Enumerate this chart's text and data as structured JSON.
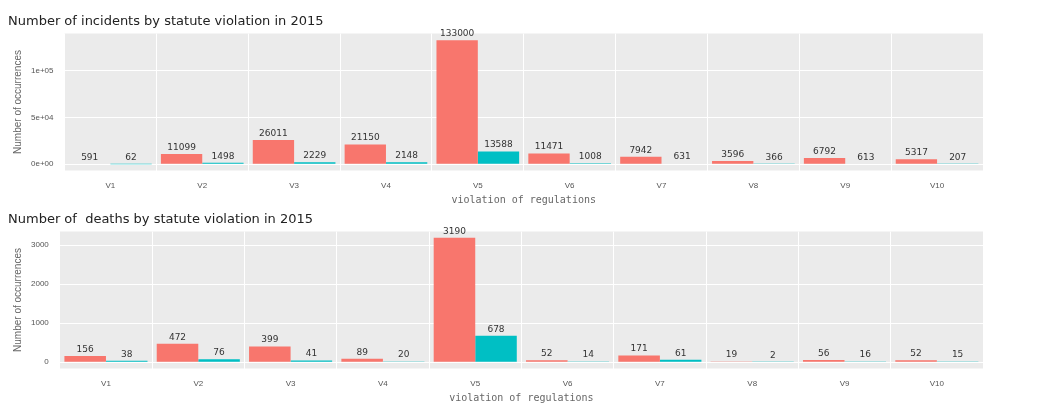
{
  "chart_data": [
    {
      "type": "bar",
      "title": "Number of incidents by statute violation in 2015",
      "xlabel": "violation of regulations",
      "ylabel": "Number of occurrences",
      "categories": [
        "V1",
        "V2",
        "V3",
        "V4",
        "V5",
        "V6",
        "V7",
        "V8",
        "V9",
        "V10"
      ],
      "series": [
        {
          "color": "#f8766d",
          "values": [
            591,
            11099,
            26011,
            21150,
            133000,
            11471,
            7942,
            3596,
            6792,
            5317
          ]
        },
        {
          "color": "#00bfc4",
          "values": [
            62,
            1498,
            2229,
            2148,
            13588,
            1008,
            631,
            366,
            613,
            207
          ]
        }
      ],
      "ylim": [
        -6600,
        140000
      ],
      "yticks": [
        {
          "value": 0,
          "label": "0e+00"
        },
        {
          "value": 50000,
          "label": "5e+04"
        },
        {
          "value": 100000,
          "label": "1e+05"
        }
      ],
      "grid": true,
      "data_labels": true
    },
    {
      "type": "bar",
      "title": "Number of  deaths by statute violation in 2015",
      "xlabel": "violation of regulations",
      "ylabel": "Number of occurrences",
      "categories": [
        "V1",
        "V2",
        "V3",
        "V4",
        "V5",
        "V6",
        "V7",
        "V8",
        "V9",
        "V10"
      ],
      "series": [
        {
          "color": "#f8766d",
          "values": [
            156,
            472,
            399,
            89,
            3190,
            52,
            171,
            19,
            56,
            52
          ]
        },
        {
          "color": "#00bfc4",
          "values": [
            38,
            76,
            41,
            20,
            678,
            14,
            61,
            2,
            16,
            15
          ]
        }
      ],
      "ylim": [
        -160,
        3350
      ],
      "yticks": [
        0,
        1000,
        2000,
        3000
      ],
      "grid": true,
      "data_labels": true
    }
  ]
}
